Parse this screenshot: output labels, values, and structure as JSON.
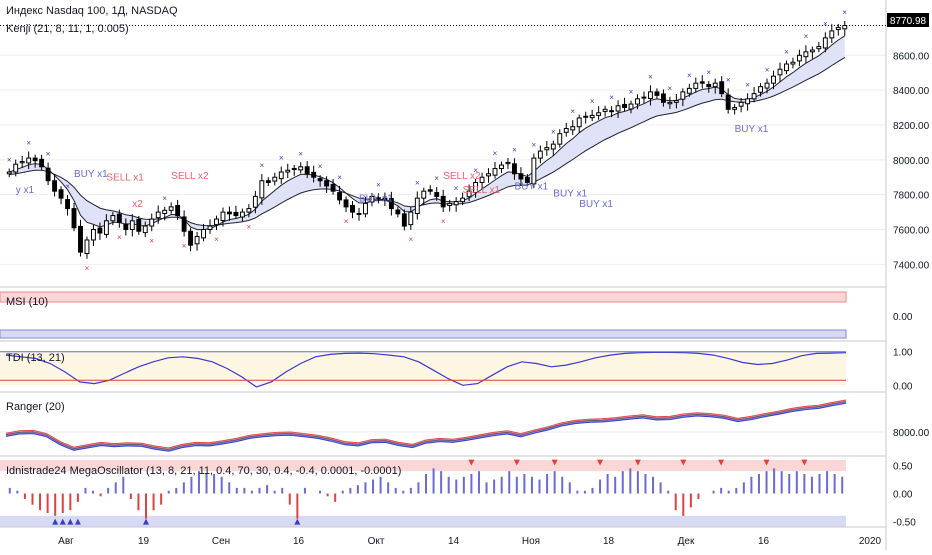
{
  "header": {
    "title": "Индекс Nasdaq 100, 1Д, NASDAQ",
    "indicator_main": "Kenji (21, 8, 11, 1, 0.005)"
  },
  "price_tag": "8770.98",
  "colors": {
    "up_candle": "#ffffff",
    "down_candle": "#000000",
    "marker_blue": "#3a3ad0",
    "marker_red": "#e04040",
    "band_fill": "#dde0f6",
    "band_line": "#222233",
    "signal_red": "#e8646a",
    "signal_blue": "#6a6ad8",
    "panel_red_band": "#f9d7d7",
    "panel_blue_band": "#d8daf4",
    "grid": "#eeeeee"
  },
  "chart_data": [
    {
      "panel": "main",
      "type": "candlestick",
      "title": "Индекс Nasdaq 100, 1Д, NASDAQ",
      "subtitle": "Kenji (21, 8, 11, 1, 0.005)",
      "ylim": [
        7270,
        8860
      ],
      "yticks": [
        7400,
        7600,
        7800,
        8000,
        8200,
        8400,
        8600
      ],
      "last_price": 8770.98,
      "xlabels": [
        "Авг",
        "19",
        "Сен",
        "16",
        "Окт",
        "14",
        "Ноя",
        "18",
        "Дек",
        "16",
        "2020"
      ],
      "close": [
        7930,
        7975,
        7990,
        8010,
        7995,
        7960,
        7880,
        7820,
        7780,
        7720,
        7610,
        7470,
        7540,
        7600,
        7580,
        7650,
        7680,
        7640,
        7600,
        7650,
        7590,
        7620,
        7660,
        7700,
        7710,
        7730,
        7680,
        7590,
        7510,
        7560,
        7600,
        7620,
        7660,
        7700,
        7690,
        7680,
        7700,
        7720,
        7790,
        7880,
        7870,
        7900,
        7930,
        7940,
        7950,
        7960,
        7920,
        7900,
        7880,
        7850,
        7820,
        7770,
        7730,
        7700,
        7690,
        7750,
        7790,
        7780,
        7770,
        7720,
        7690,
        7620,
        7700,
        7780,
        7820,
        7820,
        7790,
        7730,
        7750,
        7760,
        7780,
        7820,
        7870,
        7900,
        7920,
        7950,
        7970,
        7985,
        7920,
        7890,
        7870,
        8010,
        8050,
        8070,
        8090,
        8150,
        8180,
        8190,
        8240,
        8250,
        8255,
        8270,
        8290,
        8280,
        8310,
        8300,
        8320,
        8350,
        8360,
        8390,
        8370,
        8330,
        8330,
        8340,
        8390,
        8410,
        8440,
        8440,
        8420,
        8440,
        8380,
        8290,
        8300,
        8330,
        8350,
        8380,
        8420,
        8440,
        8480,
        8520,
        8550,
        8560,
        8600,
        8620,
        8630,
        8650,
        8700,
        8740,
        8760,
        8770.98
      ],
      "markers_blue_x": 40,
      "markers_red_x": 14,
      "signal_labels": [
        {
          "text": "BUY x1",
          "color": "red_or_blue",
          "kind": "buy"
        },
        {
          "text": "y x1",
          "kind": "buy"
        },
        {
          "text": "SELL x1",
          "kind": "sell"
        },
        {
          "text": "SELL x2",
          "kind": "sell"
        },
        {
          "text": "x2",
          "kind": "sell"
        },
        {
          "text": "BUY x1",
          "kind": "buy"
        },
        {
          "text": "SELL x2",
          "kind": "sell"
        },
        {
          "text": "SELL x1",
          "kind": "sell"
        },
        {
          "text": "BUY x1",
          "kind": "buy"
        },
        {
          "text": "BUY x1",
          "kind": "buy"
        },
        {
          "text": "BUY x1",
          "kind": "buy"
        },
        {
          "text": "BUY x1",
          "kind": "buy"
        }
      ]
    },
    {
      "panel": "msi",
      "type": "line",
      "title": "MSI (10)",
      "yticks": [
        0.0
      ],
      "ytick_labels": [
        "0.00"
      ]
    },
    {
      "panel": "tdi",
      "type": "line",
      "title": "TDI (13, 21)",
      "ylim": [
        -0.2,
        1.2
      ],
      "yticks": [
        0.0,
        1.0
      ],
      "ytick_labels": [
        "0.00",
        "1.00"
      ],
      "series": [
        {
          "values": [
            0.9,
            0.85,
            0.8,
            0.65,
            0.4,
            0.1,
            0.05,
            0.15,
            0.35,
            0.55,
            0.7,
            0.82,
            0.85,
            0.8,
            0.7,
            0.5,
            0.25,
            -0.05,
            0.1,
            0.4,
            0.65,
            0.85,
            0.92,
            0.95,
            0.96,
            0.94,
            0.9,
            0.85,
            0.7,
            0.45,
            0.2,
            0.0,
            0.05,
            0.3,
            0.55,
            0.7,
            0.65,
            0.55,
            0.6,
            0.7,
            0.82,
            0.9,
            0.95,
            0.97,
            0.98,
            0.98,
            0.97,
            0.95,
            0.9,
            0.8,
            0.68,
            0.62,
            0.65,
            0.75,
            0.88,
            0.95,
            0.96,
            0.97
          ]
        }
      ]
    },
    {
      "panel": "ranger",
      "type": "line",
      "title": "Ranger (20)",
      "yticks": [
        8000
      ],
      "ytick_labels": [
        "8000.00"
      ],
      "values": [
        7930,
        7990,
        8000,
        7920,
        7720,
        7580,
        7640,
        7700,
        7670,
        7690,
        7680,
        7610,
        7560,
        7650,
        7700,
        7690,
        7740,
        7800,
        7880,
        7920,
        7950,
        7960,
        7920,
        7880,
        7810,
        7720,
        7690,
        7770,
        7780,
        7700,
        7650,
        7760,
        7800,
        7780,
        7830,
        7890,
        7950,
        7990,
        7920,
        8010,
        8090,
        8190,
        8250,
        8280,
        8290,
        8320,
        8360,
        8390,
        8340,
        8350,
        8410,
        8440,
        8420,
        8380,
        8300,
        8350,
        8420,
        8480,
        8550,
        8600,
        8630,
        8700,
        8760
      ]
    },
    {
      "panel": "mega",
      "type": "bar",
      "title": "Idnistrade24 MegaOscillator (13, 8, 21, 11, 0.4, 70, 30, 0.4, -0.4, 0.0001, -0.0001)",
      "ylim": [
        -0.6,
        0.6
      ],
      "yticks": [
        0.5,
        0.0,
        -0.5
      ],
      "ytick_labels": [
        "0.50",
        "0.00",
        "-0.50"
      ],
      "values": [
        0.1,
        0.05,
        -0.1,
        -0.2,
        -0.3,
        -0.35,
        -0.4,
        -0.35,
        -0.3,
        -0.15,
        0.1,
        0.05,
        -0.05,
        0.1,
        0.2,
        0.3,
        -0.1,
        -0.3,
        -0.45,
        -0.3,
        -0.2,
        0.05,
        0.1,
        0.2,
        0.3,
        0.4,
        0.35,
        0.35,
        0.3,
        0.2,
        0.1,
        0.1,
        0.05,
        0.1,
        0.15,
        0.05,
        0.1,
        -0.2,
        -0.45,
        0.1,
        0.0,
        0.05,
        -0.05,
        -0.15,
        0.05,
        0.1,
        0.15,
        0.2,
        0.25,
        0.3,
        0.2,
        0.1,
        0.05,
        0.1,
        0.2,
        0.35,
        0.45,
        0.4,
        0.3,
        0.25,
        0.3,
        0.35,
        0.4,
        0.2,
        0.25,
        0.3,
        0.4,
        0.3,
        0.35,
        0.3,
        0.25,
        0.35,
        0.4,
        0.3,
        0.2,
        0.05,
        0.05,
        0.1,
        0.25,
        0.35,
        0.3,
        0.4,
        0.45,
        0.4,
        0.35,
        0.3,
        0.2,
        0.05,
        -0.3,
        -0.4,
        -0.25,
        -0.1,
        0.0,
        0.05,
        0.1,
        0.05,
        0.1,
        0.2,
        0.3,
        0.35,
        0.4,
        0.45,
        0.4,
        0.35,
        0.4,
        0.35,
        0.3,
        0.35,
        0.4,
        0.35,
        0.3
      ],
      "triangles_down_count": 9,
      "triangles_up_count": 6
    }
  ]
}
